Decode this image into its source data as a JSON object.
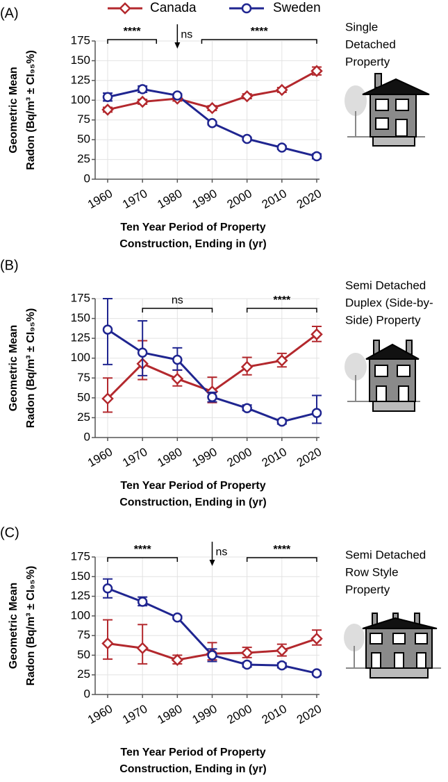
{
  "chart_data": [
    {
      "type": "line",
      "label": "(A)",
      "y_label": [
        "Geometric Mean",
        "Radon (Bq/m³ ± CI₉₅%)"
      ],
      "x_label": [
        "Ten Year Period of Property",
        "Construction, Ending in (yr)"
      ],
      "caption": [
        "Single",
        "Detached",
        "Property"
      ],
      "x": [
        1960,
        1970,
        1980,
        1990,
        2000,
        2010,
        2020
      ],
      "xlim": [
        1960,
        2020
      ],
      "xticks": [
        1960,
        1970,
        1980,
        1990,
        2000,
        2010,
        2020
      ],
      "ylim": [
        0,
        175
      ],
      "yticks": [
        0,
        25,
        50,
        75,
        100,
        125,
        150,
        175
      ],
      "grid": true,
      "series": [
        {
          "name": "Canada",
          "color": "#b3282d",
          "marker": "diamond",
          "values": [
            88,
            98,
            102,
            90,
            105,
            113,
            137
          ],
          "ci_low": [
            85,
            95,
            99,
            87,
            102,
            110,
            132
          ],
          "ci_high": [
            91,
            101,
            105,
            93,
            108,
            116,
            142
          ]
        },
        {
          "name": "Sweden",
          "color": "#1f2590",
          "marker": "circle",
          "values": [
            104,
            114,
            106,
            71,
            51,
            40,
            29
          ],
          "ci_low": [
            99,
            110,
            104,
            69,
            49,
            38,
            26
          ],
          "ci_high": [
            109,
            118,
            108,
            73,
            53,
            42,
            32
          ]
        }
      ],
      "brackets": [
        {
          "text": "****",
          "from": 1960,
          "to": 1974
        },
        {
          "text": "****",
          "from": 1987,
          "to": 2020
        }
      ],
      "arrows": [
        {
          "text": "ns",
          "at": 1980
        }
      ]
    },
    {
      "type": "line",
      "label": "(B)",
      "y_label": [
        "Geometric Mean",
        "Radon (Bq/m³ ± CI₉₅%)"
      ],
      "x_label": [
        "Ten Year Period of Property",
        "Construction, Ending in (yr)"
      ],
      "caption": [
        "Semi Detached",
        "Duplex (Side-by-",
        "Side) Property"
      ],
      "x": [
        1960,
        1970,
        1980,
        1990,
        2000,
        2010,
        2020
      ],
      "xlim": [
        1960,
        2020
      ],
      "xticks": [
        1960,
        1970,
        1980,
        1990,
        2000,
        2010,
        2020
      ],
      "ylim": [
        0,
        175
      ],
      "yticks": [
        0,
        25,
        50,
        75,
        100,
        125,
        150,
        175
      ],
      "grid": true,
      "series": [
        {
          "color": "#b3282d",
          "marker": "diamond",
          "values": [
            49,
            93,
            74,
            58,
            89,
            97,
            130
          ],
          "ci_low": [
            32,
            73,
            65,
            44,
            79,
            89,
            121
          ],
          "ci_high": [
            75,
            122,
            85,
            76,
            101,
            106,
            140
          ]
        },
        {
          "color": "#1f2590",
          "marker": "circle",
          "values": [
            136,
            107,
            98,
            51,
            37,
            20,
            31
          ],
          "ci_low": [
            92,
            78,
            85,
            45,
            34,
            17,
            18
          ],
          "ci_high": [
            175,
            147,
            113,
            57,
            41,
            23,
            53
          ]
        }
      ],
      "brackets": [
        {
          "text": "ns",
          "from": 1970,
          "to": 1990
        },
        {
          "text": "****",
          "from": 2000,
          "to": 2020
        }
      ],
      "arrows": []
    },
    {
      "type": "line",
      "label": "(C)",
      "y_label": [
        "Geometric Mean",
        "Radon (Bq/m³ ± CI₉₅%)"
      ],
      "x_label": [
        "Ten Year Period of Property",
        "Construction, Ending in (yr)"
      ],
      "caption": [
        "Semi Detached",
        "Row Style",
        "Property"
      ],
      "x": [
        1960,
        1970,
        1980,
        1990,
        2000,
        2010,
        2020
      ],
      "xlim": [
        1960,
        2020
      ],
      "xticks": [
        1960,
        1970,
        1980,
        1990,
        2000,
        2010,
        2020
      ],
      "ylim": [
        0,
        175
      ],
      "yticks": [
        0,
        25,
        50,
        75,
        100,
        125,
        150,
        175
      ],
      "grid": true,
      "series": [
        {
          "color": "#b3282d",
          "marker": "diamond",
          "values": [
            65,
            59,
            44,
            52,
            53,
            56,
            71
          ],
          "ci_low": [
            45,
            39,
            39,
            44,
            47,
            49,
            63
          ],
          "ci_high": [
            95,
            89,
            50,
            66,
            60,
            64,
            82
          ]
        },
        {
          "color": "#1f2590",
          "marker": "circle",
          "values": [
            135,
            118,
            98,
            50,
            38,
            37,
            27
          ],
          "ci_low": [
            123,
            113,
            96,
            42,
            35,
            34,
            25
          ],
          "ci_high": [
            147,
            124,
            100,
            58,
            41,
            40,
            29
          ]
        }
      ],
      "brackets": [
        {
          "text": "****",
          "from": 1960,
          "to": 1980
        },
        {
          "text": "****",
          "from": 2000,
          "to": 2020
        }
      ],
      "arrows": [
        {
          "text": "ns",
          "at": 1990
        }
      ]
    }
  ]
}
